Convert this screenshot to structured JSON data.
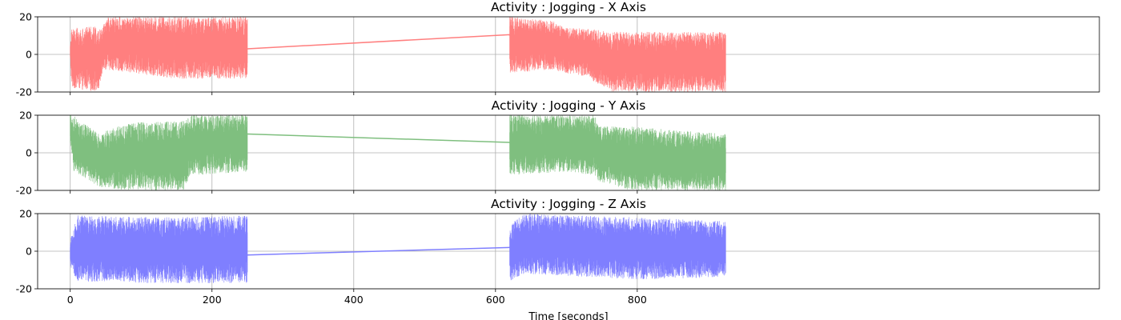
{
  "chart_data": [
    {
      "type": "line",
      "title": "Activity : Jogging - X Axis",
      "xlabel": "",
      "ylabel": "",
      "xlim": [
        -46,
        1452
      ],
      "ylim": [
        -20,
        20
      ],
      "yticks": [
        -20,
        0,
        20
      ],
      "xticks": [
        0,
        200,
        400,
        600,
        800
      ],
      "show_xticklabels": false,
      "grid": true,
      "color": "#ff7f7f",
      "segments": [
        {
          "x_start": 0,
          "x_end": 250,
          "envelope": [
            {
              "x": 0,
              "lo": -3,
              "hi": 5
            },
            {
              "x": 2,
              "lo": -18,
              "hi": 14
            },
            {
              "x": 40,
              "lo": -20,
              "hi": 15
            },
            {
              "x": 46,
              "lo": -8,
              "hi": 15
            },
            {
              "x": 50,
              "lo": -8,
              "hi": 20
            },
            {
              "x": 150,
              "lo": -13,
              "hi": 20
            },
            {
              "x": 250,
              "lo": -13,
              "hi": 20
            }
          ]
        },
        {
          "x_start": 620,
          "x_end": 925,
          "envelope": [
            {
              "x": 620,
              "lo": -10,
              "hi": 20
            },
            {
              "x": 680,
              "lo": -8,
              "hi": 18
            },
            {
              "x": 700,
              "lo": -10,
              "hi": 14
            },
            {
              "x": 730,
              "lo": -12,
              "hi": 14
            },
            {
              "x": 760,
              "lo": -20,
              "hi": 12
            },
            {
              "x": 925,
              "lo": -20,
              "hi": 12
            }
          ]
        }
      ],
      "connector": {
        "x": [
          250,
          620
        ],
        "y": [
          3,
          10.5
        ]
      }
    },
    {
      "type": "line",
      "title": "Activity : Jogging - Y Axis",
      "xlabel": "",
      "ylabel": "",
      "xlim": [
        -46,
        1452
      ],
      "ylim": [
        -20,
        20
      ],
      "yticks": [
        -20,
        0,
        20
      ],
      "xticks": [
        0,
        200,
        400,
        600,
        800
      ],
      "show_xticklabels": false,
      "grid": true,
      "color": "#7fbf7f",
      "segments": [
        {
          "x_start": 0,
          "x_end": 250,
          "envelope": [
            {
              "x": 0,
              "lo": 5,
              "hi": 20
            },
            {
              "x": 5,
              "lo": -10,
              "hi": 20
            },
            {
              "x": 40,
              "lo": -18,
              "hi": 10
            },
            {
              "x": 80,
              "lo": -20,
              "hi": 16
            },
            {
              "x": 160,
              "lo": -20,
              "hi": 17
            },
            {
              "x": 170,
              "lo": -12,
              "hi": 20
            },
            {
              "x": 250,
              "lo": -10,
              "hi": 20
            }
          ]
        },
        {
          "x_start": 620,
          "x_end": 925,
          "envelope": [
            {
              "x": 620,
              "lo": -12,
              "hi": 20
            },
            {
              "x": 700,
              "lo": -10,
              "hi": 20
            },
            {
              "x": 740,
              "lo": -12,
              "hi": 20
            },
            {
              "x": 745,
              "lo": -15,
              "hi": 14
            },
            {
              "x": 790,
              "lo": -20,
              "hi": 14
            },
            {
              "x": 925,
              "lo": -20,
              "hi": 10
            }
          ]
        }
      ],
      "connector": {
        "x": [
          250,
          620
        ],
        "y": [
          10,
          5.5
        ]
      }
    },
    {
      "type": "line",
      "title": "Activity : Jogging - Z Axis",
      "xlabel": "Time [seconds]",
      "ylabel": "",
      "xlim": [
        -46,
        1452
      ],
      "ylim": [
        -20,
        20
      ],
      "yticks": [
        -20,
        0,
        20
      ],
      "xticks": [
        0,
        200,
        400,
        600,
        800
      ],
      "show_xticklabels": true,
      "grid": true,
      "color": "#7f7fff",
      "segments": [
        {
          "x_start": 0,
          "x_end": 250,
          "envelope": [
            {
              "x": 0,
              "lo": -8,
              "hi": 6
            },
            {
              "x": 10,
              "lo": -16,
              "hi": 19
            },
            {
              "x": 125,
              "lo": -17,
              "hi": 18
            },
            {
              "x": 250,
              "lo": -17,
              "hi": 19
            }
          ]
        },
        {
          "x_start": 620,
          "x_end": 925,
          "envelope": [
            {
              "x": 620,
              "lo": -16,
              "hi": 14
            },
            {
              "x": 640,
              "lo": -12,
              "hi": 20
            },
            {
              "x": 800,
              "lo": -15,
              "hi": 18
            },
            {
              "x": 925,
              "lo": -14,
              "hi": 16
            }
          ]
        }
      ],
      "connector": {
        "x": [
          250,
          620
        ],
        "y": [
          -2,
          2
        ]
      }
    }
  ]
}
